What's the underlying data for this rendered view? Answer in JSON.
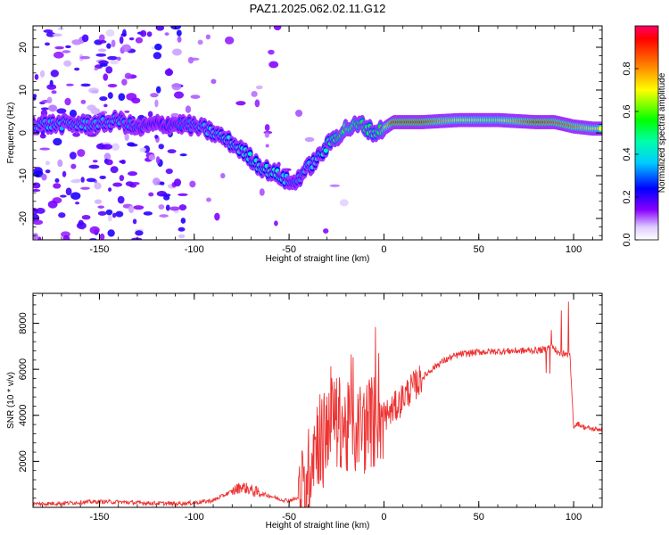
{
  "figure": {
    "title": "PAZ1.2025.062.02.11.G12"
  },
  "chart_data": [
    {
      "type": "heatmap",
      "xlabel": "Height of straight line (km)",
      "ylabel": "Frequency (Hz)",
      "xlim": [
        -185,
        115
      ],
      "ylim": [
        -25,
        25
      ],
      "x_ticks": [
        -150,
        -100,
        -50,
        0,
        50,
        100
      ],
      "y_ticks": [
        -20,
        -10,
        0,
        10,
        20
      ],
      "colorbar": {
        "label": "Normalized spectral amplitude",
        "range": [
          0,
          1
        ],
        "ticks": [
          "0.0",
          "0.2",
          "0.4",
          "0.6",
          "0.8"
        ],
        "tick_values": [
          0.0,
          0.2,
          0.4,
          0.6,
          0.8
        ],
        "colors": [
          "#ffffff",
          "#c9a0ff",
          "#7a00ff",
          "#0000ff",
          "#00ffff",
          "#00ff00",
          "#ffff00",
          "#ff8000",
          "#ff0000",
          "#ff0050"
        ]
      },
      "ridge": {
        "x": [
          -150,
          -140,
          -130,
          -120,
          -105,
          -95,
          -85,
          -75,
          -65,
          -55,
          -48,
          -42,
          -35,
          -28,
          -20,
          -12,
          -5,
          0,
          5,
          20,
          40,
          60,
          80,
          90,
          100,
          110
        ],
        "freq": [
          2,
          3,
          1,
          2,
          2,
          1,
          -1,
          -4,
          -8,
          -10,
          -12,
          -9,
          -6,
          -2,
          1,
          2,
          0,
          1,
          2.5,
          2.5,
          3,
          3,
          2.5,
          2.5,
          1.5,
          1
        ],
        "amplitude": [
          0.35,
          0.35,
          0.3,
          0.25,
          0.3,
          0.35,
          0.4,
          0.4,
          0.45,
          0.45,
          0.3,
          0.35,
          0.4,
          0.5,
          0.6,
          0.55,
          0.5,
          0.6,
          0.95,
          0.95,
          0.7,
          0.65,
          0.95,
          0.9,
          0.85,
          0.7
        ]
      }
    },
    {
      "type": "line",
      "xlabel": "Height of straight line (km)",
      "ylabel": "SNR (10 * v/v)",
      "xlim": [
        -185,
        115
      ],
      "ylim": [
        0,
        9300
      ],
      "x_ticks": [
        -150,
        -100,
        -50,
        0,
        50,
        100
      ],
      "y_ticks": [
        2000,
        4000,
        6000,
        8000
      ],
      "series": [
        {
          "color": "#ee3333",
          "x": [
            -185,
            -170,
            -160,
            -150,
            -140,
            -130,
            -120,
            -110,
            -100,
            -95,
            -90,
            -85,
            -80,
            -75,
            -70,
            -65,
            -60,
            -55,
            -50,
            -45,
            -42,
            -40,
            -38,
            -35,
            -32,
            -30,
            -28,
            -25,
            -22,
            -20,
            -18,
            -15,
            -12,
            -10,
            -8,
            -5,
            -3,
            0,
            3,
            5,
            8,
            10,
            15,
            20,
            25,
            30,
            35,
            40,
            50,
            60,
            70,
            80,
            85,
            88,
            90,
            92,
            95,
            98,
            100,
            102,
            105,
            110,
            115
          ],
          "y": [
            150,
            180,
            220,
            250,
            230,
            200,
            180,
            160,
            200,
            250,
            300,
            500,
            700,
            900,
            750,
            600,
            500,
            350,
            300,
            400,
            700,
            1300,
            2500,
            3000,
            2800,
            3500,
            4200,
            3600,
            3800,
            3200,
            3500,
            3400,
            3600,
            3400,
            3800,
            3700,
            3900,
            4000,
            4100,
            4300,
            4500,
            4800,
            5200,
            5600,
            6000,
            6300,
            6500,
            6650,
            6750,
            6780,
            6800,
            6820,
            6850,
            7000,
            6900,
            6700,
            6650,
            6600,
            3500,
            3650,
            3500,
            3400,
            3400
          ]
        }
      ]
    }
  ]
}
